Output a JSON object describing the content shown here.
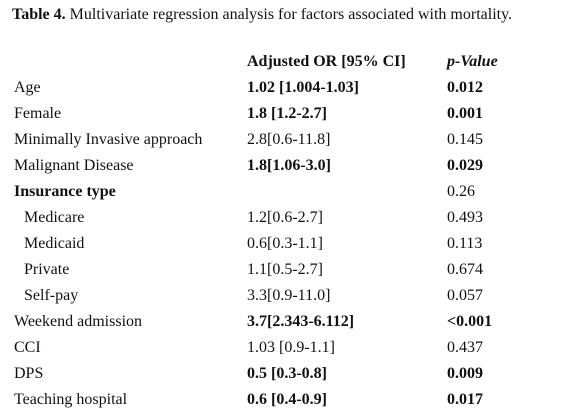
{
  "caption": {
    "label": "Table 4.",
    "text": "Multivariate regression analysis for factors associated with mortality."
  },
  "table": {
    "headers": [
      "Adjusted OR [95% CI]",
      "p-Value"
    ],
    "rows": [
      {
        "label": "Age",
        "or": "1.02 [1.004-1.03]",
        "p": "0.012",
        "bold": true
      },
      {
        "label": "Female",
        "or": "1.8 [1.2-2.7]",
        "p": "0.001",
        "bold": true
      },
      {
        "label": "Minimally Invasive approach",
        "or": "2.8[0.6-11.8]",
        "p": "0.145",
        "bold": false
      },
      {
        "label": "Malignant Disease",
        "or": "1.8[1.06-3.0]",
        "p": "0.029",
        "bold": true
      },
      {
        "label": "Insurance type",
        "p": "0.26",
        "bold": false,
        "label_bold": true
      },
      {
        "label": "Medicare",
        "or": "1.2[0.6-2.7]",
        "p": "0.493",
        "bold": false,
        "indent": true
      },
      {
        "label": "Medicaid",
        "or": "0.6[0.3-1.1]",
        "p": "0.113",
        "bold": false,
        "indent": true
      },
      {
        "label": "Private",
        "or": "1.1[0.5-2.7]",
        "p": "0.674",
        "bold": false,
        "indent": true
      },
      {
        "label": "Self-pay",
        "or": "3.3[0.9-11.0]",
        "p": "0.057",
        "bold": false,
        "indent": true
      },
      {
        "label": "Weekend admission",
        "or": "3.7[2.343-6.112]",
        "p": "<0.001",
        "bold": true
      },
      {
        "label": "CCI",
        "or": "1.03 [0.9-1.1]",
        "p": "0.437",
        "bold": false
      },
      {
        "label": "DPS",
        "or": "0.5 [0.3-0.8]",
        "p": "0.009",
        "bold": true
      },
      {
        "label": "Teaching hospital",
        "or": "0.6 [0.4-0.9]",
        "p": "0.017",
        "bold": true
      }
    ]
  }
}
